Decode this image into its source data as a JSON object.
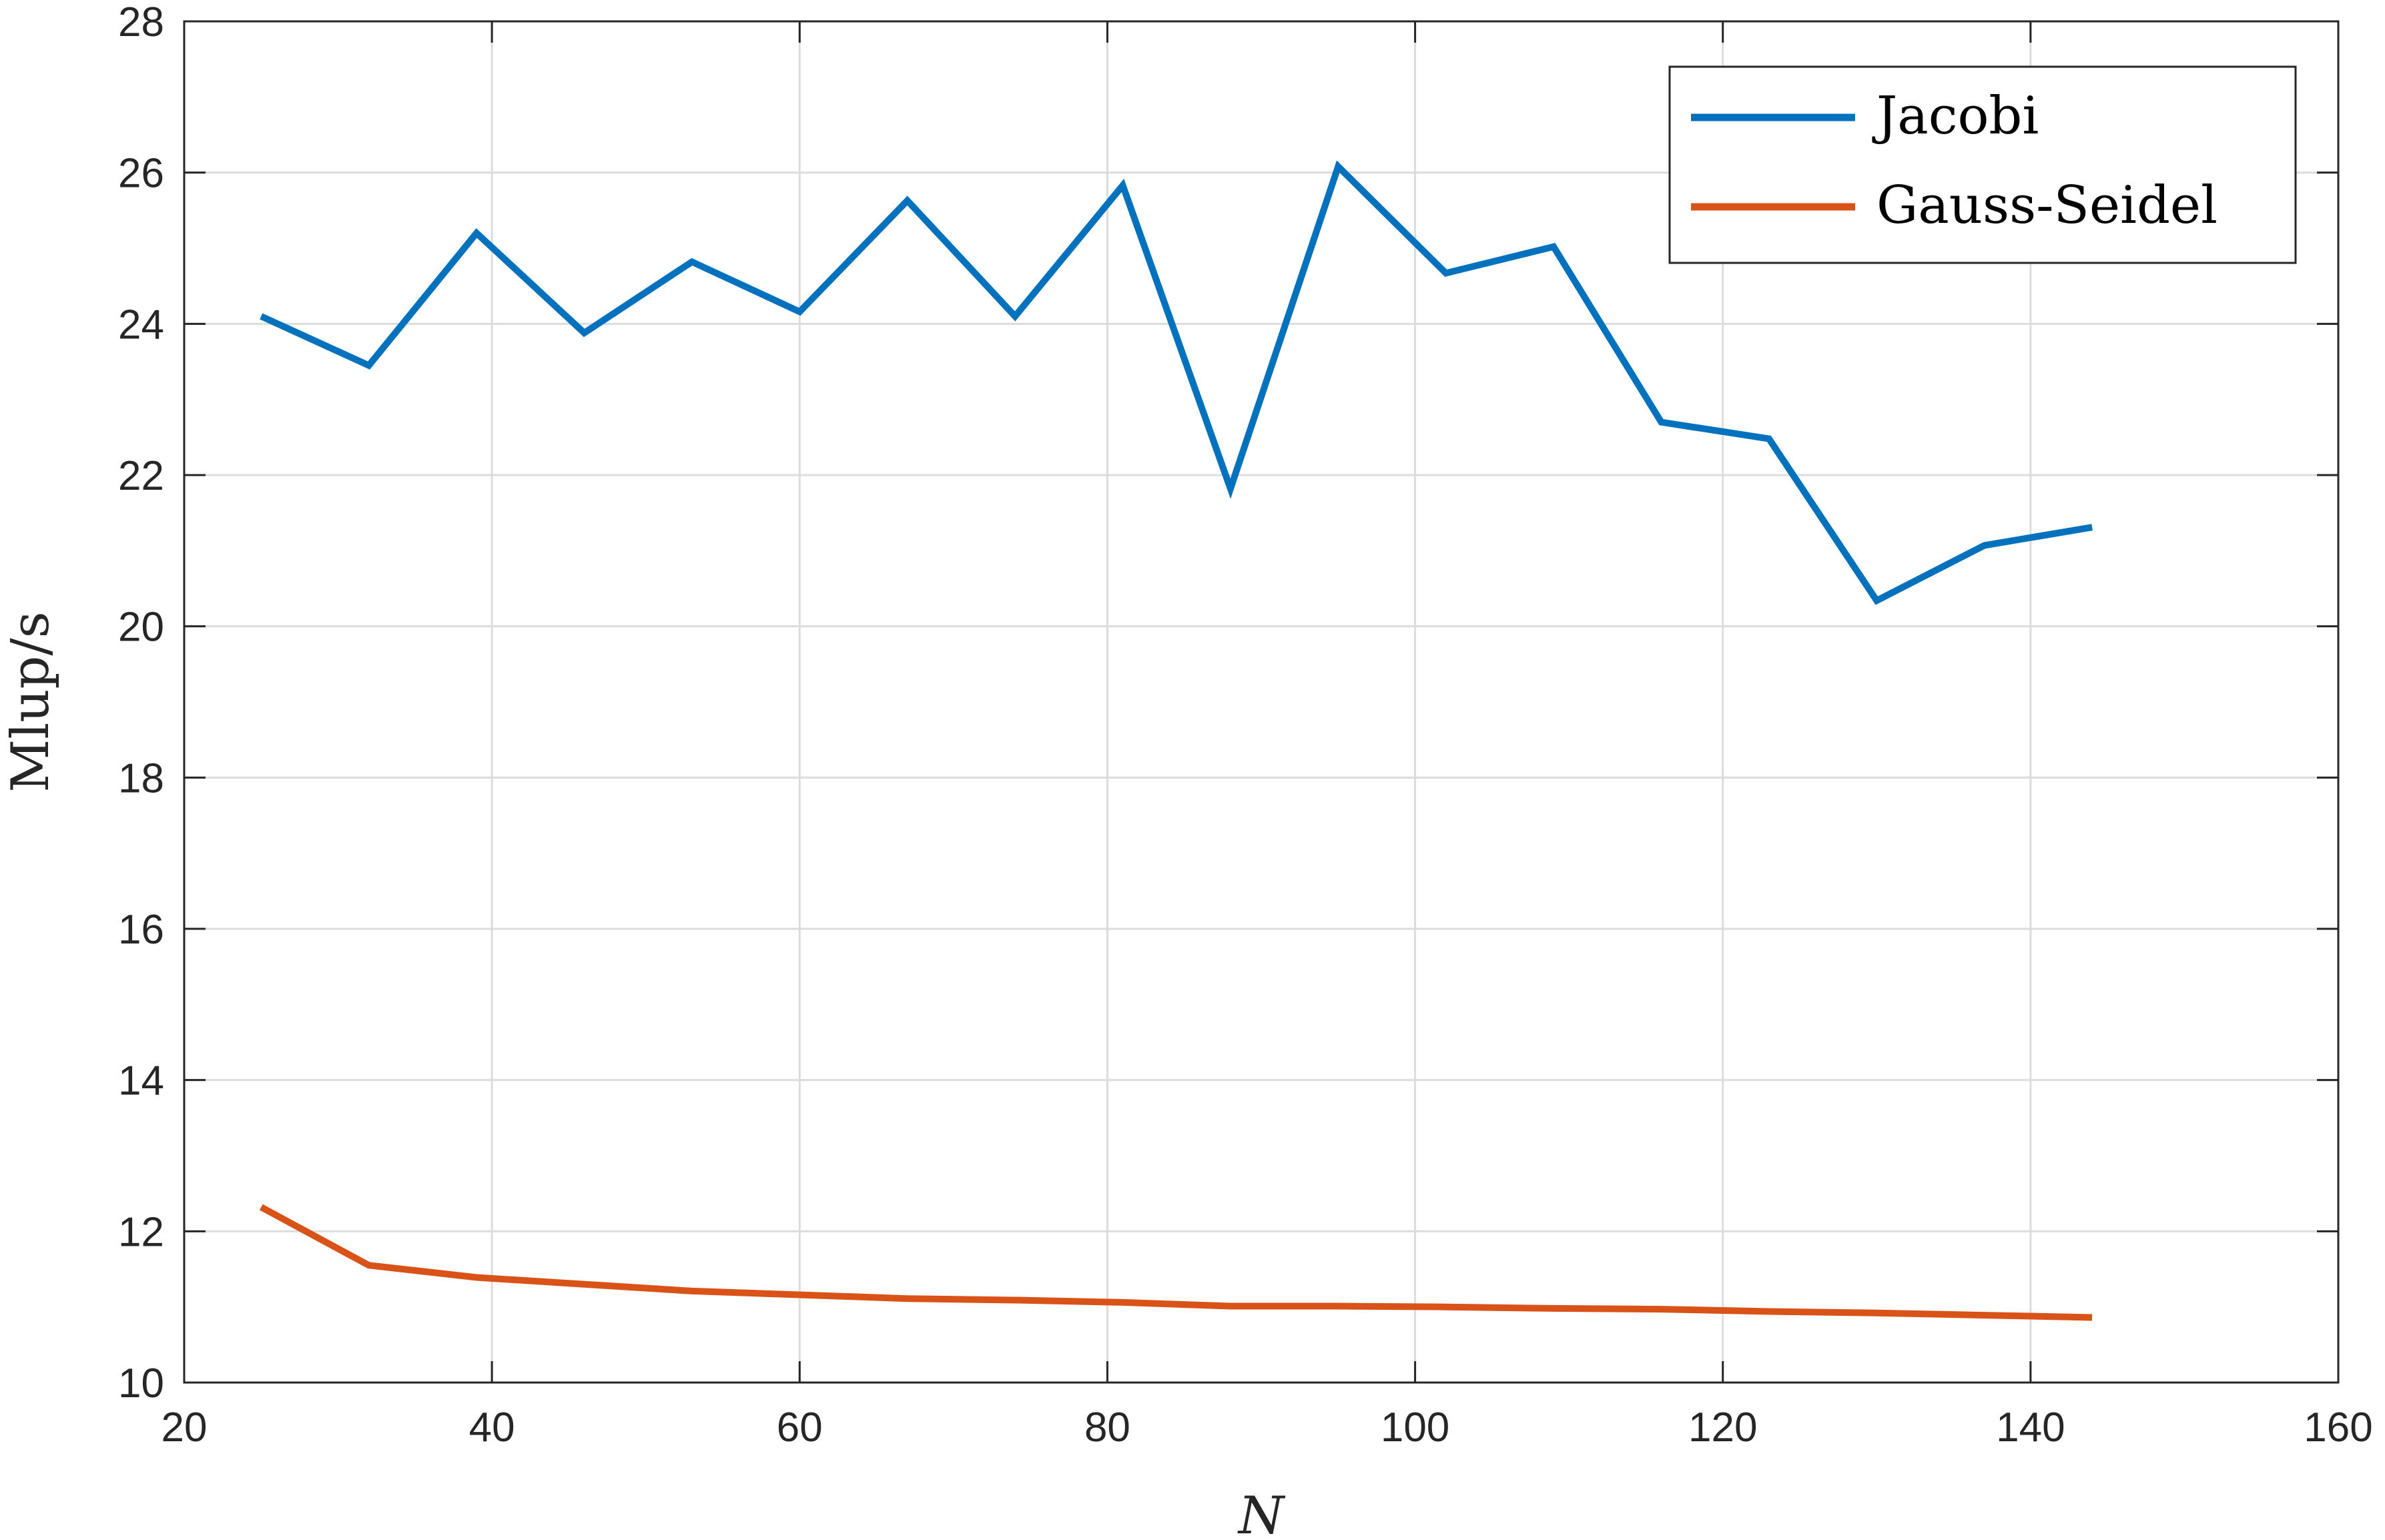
{
  "chart_data": {
    "type": "line",
    "title": "",
    "xlabel": "N",
    "ylabel": "Mlup/s",
    "xlim": [
      20,
      160
    ],
    "ylim": [
      10,
      28
    ],
    "xticks": [
      20,
      40,
      60,
      80,
      100,
      120,
      140,
      160
    ],
    "yticks": [
      10,
      12,
      14,
      16,
      18,
      20,
      22,
      24,
      26,
      28
    ],
    "grid": true,
    "legend_position": "top-right",
    "x": [
      25,
      32,
      39,
      46,
      53,
      60,
      67,
      74,
      81,
      88,
      95,
      102,
      109,
      116,
      123,
      130,
      137,
      144
    ],
    "series": [
      {
        "name": "Jacobi",
        "color": "#0072BD",
        "values": [
          24.1,
          23.45,
          25.2,
          23.88,
          24.82,
          24.16,
          25.63,
          24.1,
          25.83,
          21.82,
          26.08,
          24.67,
          25.02,
          22.7,
          22.48,
          20.34,
          21.07,
          21.31
        ]
      },
      {
        "name": "Gauss-Seidel",
        "color": "#D95319",
        "values": [
          12.32,
          11.55,
          11.39,
          11.3,
          11.21,
          11.16,
          11.11,
          11.09,
          11.06,
          11.01,
          11.01,
          11.0,
          10.98,
          10.97,
          10.94,
          10.92,
          10.89,
          10.86
        ]
      }
    ]
  }
}
